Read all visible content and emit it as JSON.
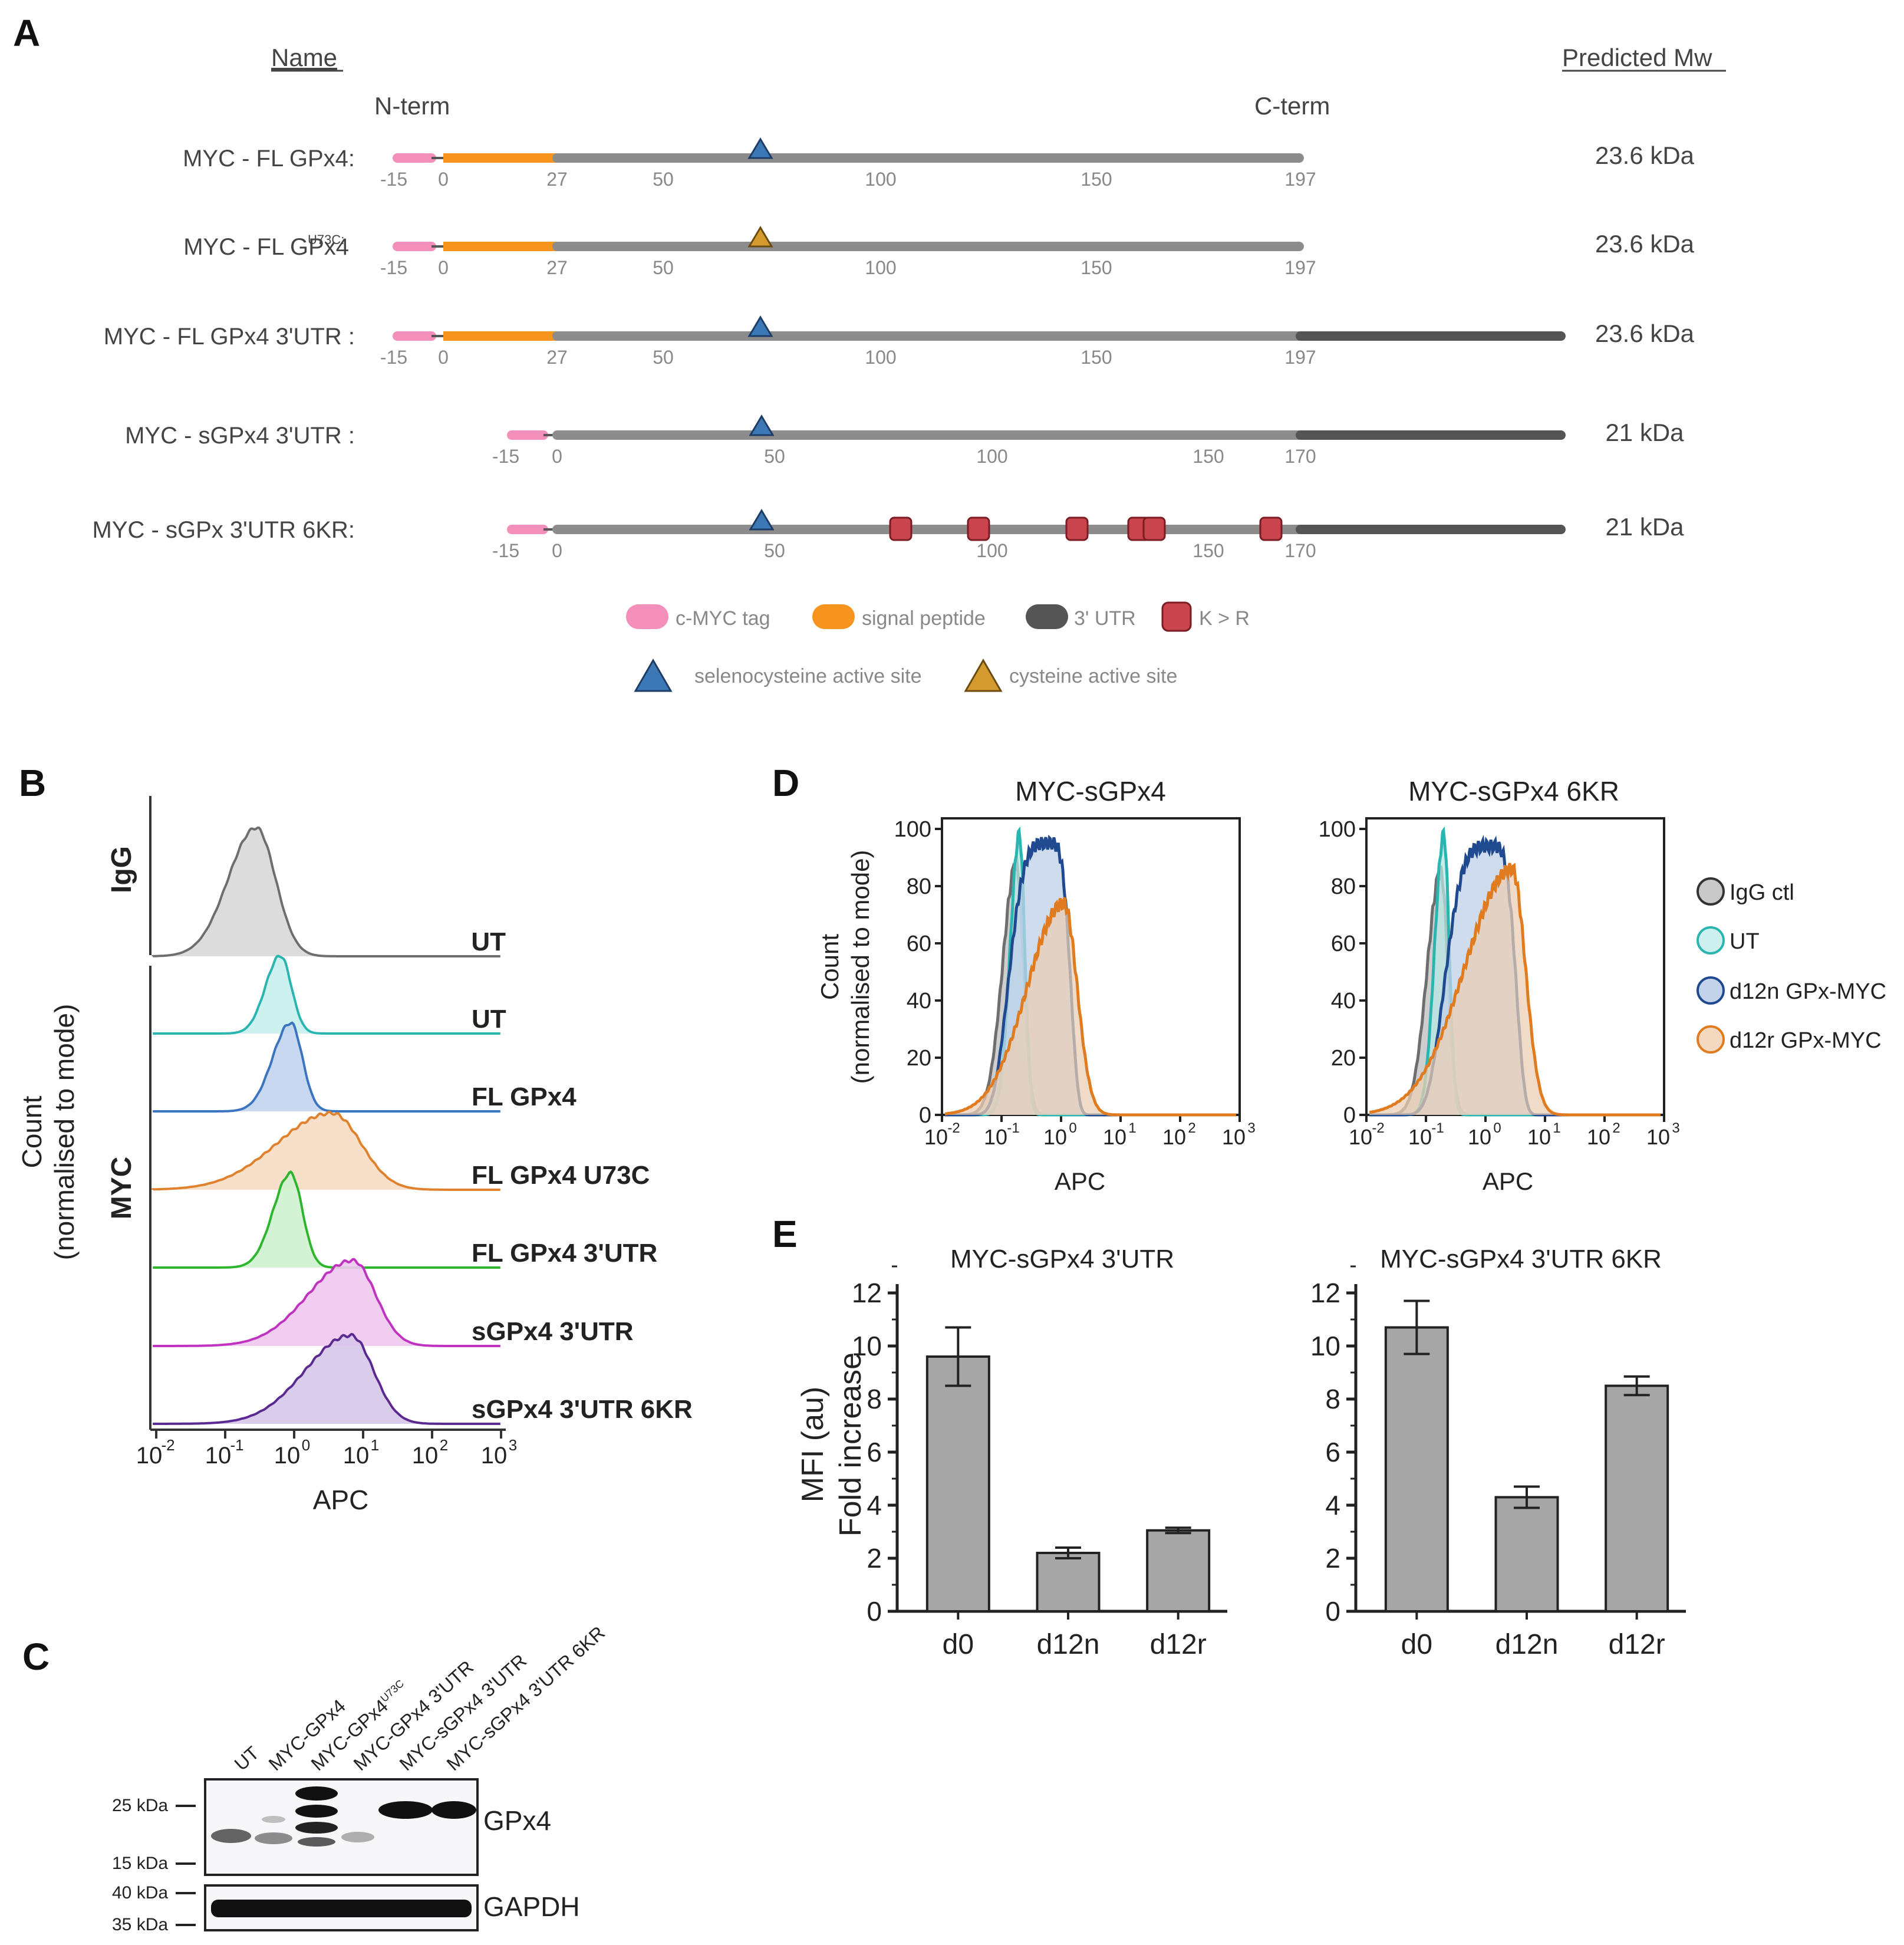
{
  "panel_letters": {
    "a": "A",
    "b": "B",
    "c": "C",
    "d": "D",
    "e": "E"
  },
  "colors": {
    "myc_tag": "#f48fb9",
    "signal": "#f7941d",
    "protein": "#8c8c8c",
    "utr": "#555555",
    "kr": "#c8454e",
    "sec": "#3b78b5",
    "cys": "#d39b2d",
    "igg": "#6e6e6e",
    "ut": "#2bb5b0",
    "d12n": "#1f4a8f",
    "d12r": "#e07b20",
    "fl": "#3b74c0",
    "u73c": "#e0822d",
    "fl3": "#2eb52e",
    "s3": "#c033c0",
    "s6kr": "#5a2a90",
    "bar": "#a6a6a6"
  },
  "panelA": {
    "name_header": "Name",
    "mw_header": "Predicted Mw",
    "nterm": "N-term",
    "cterm": "C-term",
    "constructs": [
      {
        "name": "MYC - FL GPx4:",
        "sup": "",
        "mw": "23.6 kDa",
        "ticks": [
          "-15",
          "0",
          "27",
          "50",
          "100",
          "150",
          "197"
        ],
        "site": "sec"
      },
      {
        "name": "MYC - FL GPx4",
        "sup": "U73C:",
        "mw": "23.6 kDa",
        "ticks": [
          "-15",
          "0",
          "27",
          "50",
          "100",
          "150",
          "197"
        ],
        "site": "cys"
      },
      {
        "name": "MYC - FL GPx4 3'UTR :",
        "sup": "",
        "mw": "23.6 kDa",
        "ticks": [
          "-15",
          "0",
          "27",
          "50",
          "100",
          "150",
          "197"
        ],
        "site": "sec"
      },
      {
        "name": "MYC - sGPx4 3'UTR :",
        "sup": "",
        "mw": "21 kDa",
        "ticks": [
          "-15",
          "0",
          "50",
          "100",
          "150",
          "170"
        ],
        "site": "sec"
      },
      {
        "name": "MYC - sGPx 3'UTR 6KR:",
        "sup": "",
        "mw": "21 kDa",
        "ticks": [
          "-15",
          "0",
          "50",
          "100",
          "150",
          "170"
        ],
        "site": "sec"
      }
    ],
    "legend": [
      "c-MYC tag",
      "signal peptide",
      "3' UTR",
      "K > R",
      "selenocysteine active site",
      "cysteine active site"
    ]
  },
  "panelB": {
    "ylabel_1": "Count",
    "ylabel_2": "(normalised to mode)",
    "igg": "IgG",
    "myc": "MYC",
    "tracks": [
      "UT",
      "UT",
      "FL GPx4",
      "FL GPx4 U73C",
      "FL GPx4 3'UTR",
      "sGPx4 3'UTR",
      "sGPx4 3'UTR 6KR"
    ],
    "xticks": [
      "-2",
      "-1",
      "0",
      "1",
      "2",
      "3"
    ],
    "xbase": "10",
    "xlabel": "APC"
  },
  "panelC": {
    "lanes": [
      "UT",
      "MYC-GPx4",
      "MYC-GPx4",
      "MYC-GPx4 3'UTR",
      "MYC-sGPx4 3'UTR",
      "MYC-sGPx4 3'UTR 6KR"
    ],
    "lane_sup": "U73C",
    "markers": [
      "25 kDa",
      "15 kDa",
      "40 kDa",
      "35 kDa"
    ],
    "blots": [
      "GPx4",
      "GAPDH"
    ]
  },
  "panelD": {
    "titles": [
      "MYC-sGPx4",
      "MYC-sGPx4 6KR"
    ],
    "ylabel_1": "Count",
    "ylabel_2": "(normalised to mode)",
    "xlabel": "APC",
    "yticks": [
      "0",
      "20",
      "40",
      "60",
      "80",
      "100"
    ],
    "xticks": [
      "-2",
      "-1",
      "0",
      "1",
      "2",
      "3"
    ],
    "xbase": "10",
    "legend": [
      "IgG ctl",
      "UT",
      "d12n GPx-MYC",
      "d12r GPx-MYC"
    ]
  },
  "chart_data": [
    {
      "type": "bar",
      "title": "MYC-sGPx4 3'UTR",
      "categories": [
        "d0",
        "d12n",
        "d12r"
      ],
      "values": [
        9.6,
        2.2,
        3.05
      ],
      "errors": [
        1.1,
        0.2,
        0.1
      ],
      "ylabel": "MFI (au) Fold increase",
      "ylim": [
        0,
        12
      ],
      "yticks": [
        "0",
        "2",
        "4",
        "6",
        "8",
        "10",
        "12"
      ]
    },
    {
      "type": "bar",
      "title": "MYC-sGPx4 3'UTR 6KR",
      "categories": [
        "d0",
        "d12n",
        "d12r"
      ],
      "values": [
        10.7,
        4.3,
        8.5
      ],
      "errors": [
        1.0,
        0.4,
        0.35
      ],
      "ylabel": "MFI (au) Fold increase",
      "ylim": [
        0,
        12
      ],
      "yticks": [
        "0",
        "2",
        "4",
        "6",
        "8",
        "10",
        "12"
      ]
    }
  ],
  "panelE": {
    "ylabel_1": "MFI (au)",
    "ylabel_2": "Fold increase"
  }
}
